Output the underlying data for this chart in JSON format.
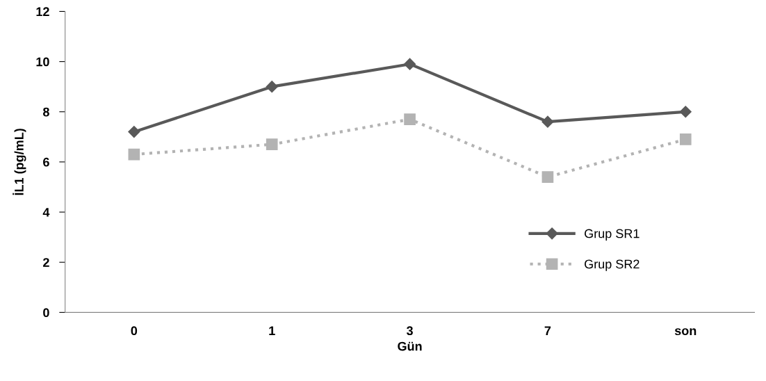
{
  "chart_data": {
    "type": "line",
    "xlabel": "Gün",
    "ylabel": "İL1 (pg/mL)",
    "categories": [
      "0",
      "1",
      "3",
      "7",
      "son"
    ],
    "series": [
      {
        "name": "Grup SR1",
        "color": "#595959",
        "values": [
          7.2,
          9.0,
          9.9,
          7.6,
          8.0
        ],
        "marker": "diamond",
        "line_style": "solid"
      },
      {
        "name": "Grup SR2",
        "color": "#b3b3b3",
        "values": [
          6.3,
          6.7,
          7.7,
          5.4,
          6.9
        ],
        "marker": "square",
        "line_style": "dotted"
      }
    ],
    "ylim": [
      0,
      12
    ],
    "yticks": [
      0,
      2,
      4,
      6,
      8,
      10,
      12
    ],
    "grid": false,
    "legend": "lower right"
  }
}
